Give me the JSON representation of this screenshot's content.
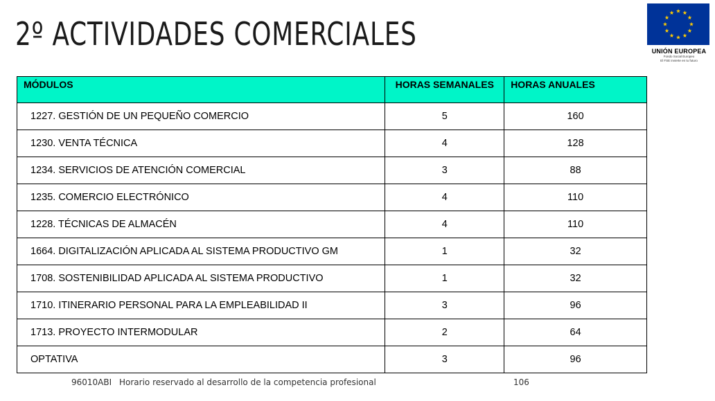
{
  "title": "2º ACTIVIDADES COMERCIALES",
  "eu_logo": {
    "name": "UNIÓN EUROPEA",
    "line1": "Fondo Social Europeo",
    "line2": "El FSE invierte en tu futuro",
    "colors": {
      "flag": "#003399",
      "stars": "#ffcc00"
    }
  },
  "table": {
    "header_color": "#00f5c8",
    "headers": [
      "MÓDULOS",
      "HORAS SEMANALES",
      "HORAS ANUALES"
    ],
    "rows": [
      {
        "module": "1227. GESTIÓN DE UN PEQUEÑO COMERCIO",
        "weekly": "5",
        "annual": "160"
      },
      {
        "module": "1230.  VENTA TÉCNICA",
        "weekly": "4",
        "annual": "128"
      },
      {
        "module": "1234. SERVICIOS DE ATENCIÓN COMERCIAL",
        "weekly": "3",
        "annual": "88"
      },
      {
        "module": "1235. COMERCIO ELECTRÓNICO",
        "weekly": "4",
        "annual": "110"
      },
      {
        "module": "1228. TÉCNICAS DE ALMACÉN",
        "weekly": "4",
        "annual": "110"
      },
      {
        "module": "1664. DIGITALIZACIÓN APLICADA AL SISTEMA PRODUCTIVO GM",
        "weekly": "1",
        "annual": "32"
      },
      {
        "module": "1708. SOSTENIBILIDAD APLICADA AL SISTEMA PRODUCTIVO",
        "weekly": "1",
        "annual": "32"
      },
      {
        "module": "1710. ITINERARIO PERSONAL PARA LA EMPLEABILIDAD II",
        "weekly": "3",
        "annual": "96"
      },
      {
        "module": "1713. PROYECTO INTERMODULAR",
        "weekly": "2",
        "annual": "64"
      },
      {
        "module": "OPTATIVA",
        "weekly": "3",
        "annual": "96"
      }
    ]
  },
  "footer": {
    "code": "96010ABI",
    "text": "Horario reservado al desarrollo de la competencia profesional",
    "value": "106"
  }
}
